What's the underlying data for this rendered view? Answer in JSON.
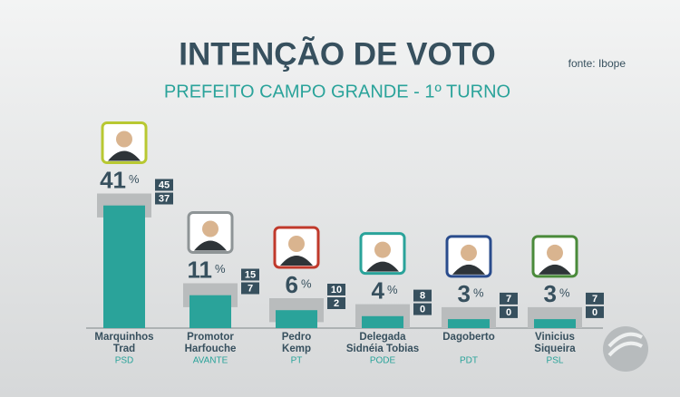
{
  "chart_data": {
    "type": "bar",
    "title": "INTENÇÃO DE VOTO",
    "subtitle": "PREFEITO CAMPO GRANDE - 1º TURNO",
    "source": "fonte: Ibope",
    "categories": [
      [
        "Marquinhos",
        "Trad"
      ],
      [
        "Promotor",
        "Harfouche"
      ],
      [
        "Pedro",
        "Kemp"
      ],
      [
        "Delegada",
        "Sidnéia Tobias"
      ],
      [
        "Dagoberto"
      ],
      [
        "Vinicius",
        "Siqueira"
      ]
    ],
    "parties": [
      "PSD",
      "AVANTE",
      "PT",
      "PODE",
      "PDT",
      "PSL"
    ],
    "values": [
      41,
      11,
      6,
      4,
      3,
      3
    ],
    "unit": "%",
    "upper": [
      45,
      15,
      10,
      8,
      7,
      7
    ],
    "lower": [
      37,
      7,
      2,
      0,
      0,
      0
    ],
    "color": "#2aa39a",
    "range_color": "#b9bcbd",
    "ylim": [
      0,
      50
    ]
  }
}
